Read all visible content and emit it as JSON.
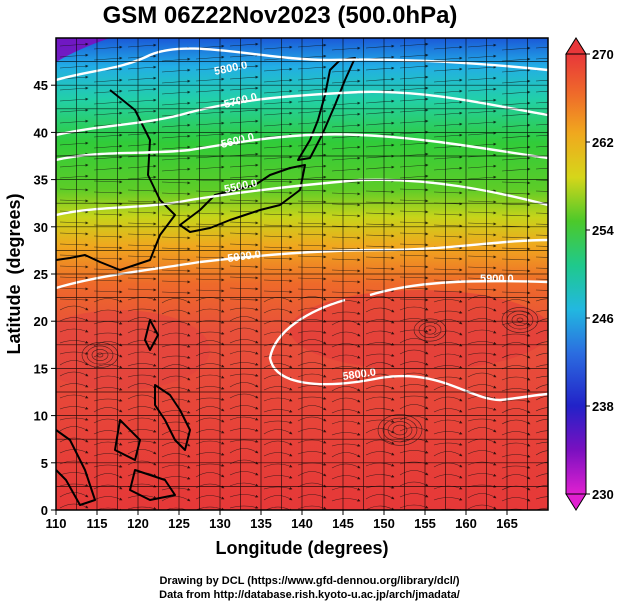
{
  "title": "GSM 06Z22Nov2023 (500.0hPa)",
  "map": {
    "xlabel": "Longitude (degrees)",
    "ylabel": "Latitude  (degrees)",
    "lon_range": [
      110,
      170
    ],
    "lat_range": [
      0,
      50
    ],
    "lon_ticks": [
      "110",
      "115",
      "120",
      "125",
      "130",
      "135",
      "140",
      "145",
      "150",
      "155",
      "160",
      "165"
    ],
    "lat_ticks": [
      "0",
      "5",
      "10",
      "15",
      "20",
      "25",
      "30",
      "35",
      "40",
      "45"
    ],
    "grid": true,
    "contours": [
      {
        "label": "5800.0"
      },
      {
        "label": "5700.0"
      },
      {
        "label": "5600.0"
      },
      {
        "label": "5500.0"
      },
      {
        "label": "5900.0"
      },
      {
        "label": "5900.0"
      },
      {
        "label": "5800.0"
      }
    ]
  },
  "colorbar": {
    "labels": [
      "270",
      "262",
      "254",
      "246",
      "238",
      "230"
    ],
    "colors": [
      "#e8373a",
      "#ef6a2a",
      "#f0a81e",
      "#d6d61a",
      "#4cc92a",
      "#1fc98c",
      "#22b8e0",
      "#2b6de0",
      "#2222c8",
      "#7a10c0",
      "#e020d0"
    ]
  },
  "credits": {
    "line1": "Drawing by DCL (https://www.gfd-dennou.org/library/dcl/)",
    "line2": "Data from http://database.rish.kyoto-u.ac.jp/arch/jmadata/"
  }
}
